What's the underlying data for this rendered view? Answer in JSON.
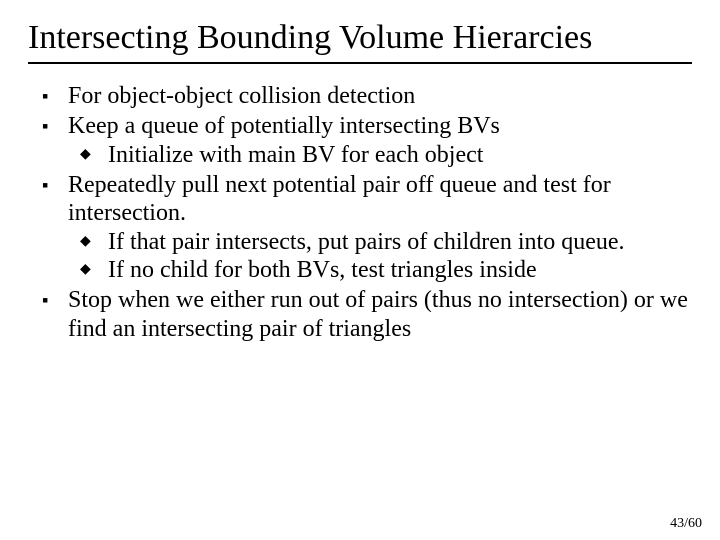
{
  "background_color": "#ffffff",
  "text_color": "#000000",
  "rule_color": "#000000",
  "font_family": "Times New Roman",
  "title_fontsize": 34,
  "body_fontsize": 24,
  "title": "Intersecting Bounding Volume Hierarcies",
  "bullets": {
    "b1": "For object-object collision detection",
    "b2": "Keep a queue of potentially intersecting BVs",
    "b2_1": "Initialize with main BV for each object",
    "b3": "Repeatedly pull next potential pair off queue and test for intersection.",
    "b3_1": "If that pair intersects, put pairs of children into queue.",
    "b3_2": "If no child for both BVs, test triangles inside",
    "b4": "Stop when we either run out of pairs (thus no intersection) or we find an intersecting pair of triangles"
  },
  "page_number": "43/60",
  "bullet_lvl1_glyph": "▪",
  "bullet_lvl2_glyph": "◆"
}
